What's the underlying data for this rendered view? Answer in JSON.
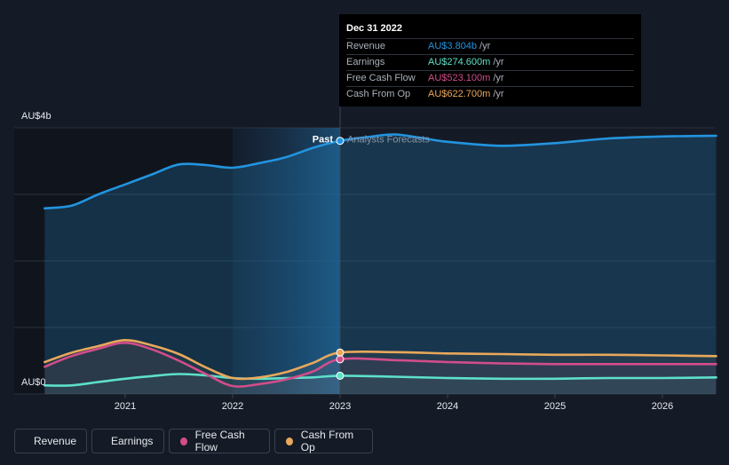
{
  "chart_data": {
    "type": "line",
    "title": "",
    "xlabel": "",
    "ylabel": "",
    "xlim": [
      2020.25,
      2026.5
    ],
    "ylim": [
      0,
      4
    ],
    "y_tick_labels": {
      "top": "AU$4b",
      "bottom": "AU$0"
    },
    "x_ticks": [
      {
        "value": 2021,
        "label": "2021"
      },
      {
        "value": 2022,
        "label": "2022"
      },
      {
        "value": 2023,
        "label": "2023"
      },
      {
        "value": 2024,
        "label": "2024"
      },
      {
        "value": 2025,
        "label": "2025"
      },
      {
        "value": 2026,
        "label": "2026"
      }
    ],
    "divider": {
      "x": 2023,
      "past_label": "Past",
      "forecast_label": "Analysts Forecasts"
    },
    "highlight_range": [
      2022,
      2023
    ],
    "series": [
      {
        "name": "Revenue",
        "color": "#2394df",
        "area": true,
        "points": [
          [
            2020.25,
            2.79
          ],
          [
            2020.5,
            2.83
          ],
          [
            2020.75,
            3.0
          ],
          [
            2021.0,
            3.15
          ],
          [
            2021.25,
            3.3
          ],
          [
            2021.5,
            3.45
          ],
          [
            2021.75,
            3.44
          ],
          [
            2022.0,
            3.4
          ],
          [
            2022.25,
            3.47
          ],
          [
            2022.5,
            3.56
          ],
          [
            2022.75,
            3.7
          ],
          [
            2023.0,
            3.804
          ],
          [
            2023.25,
            3.86
          ],
          [
            2023.5,
            3.9
          ],
          [
            2023.75,
            3.85
          ],
          [
            2024.0,
            3.79
          ],
          [
            2024.5,
            3.73
          ],
          [
            2025.0,
            3.77
          ],
          [
            2025.5,
            3.84
          ],
          [
            2026.0,
            3.87
          ],
          [
            2026.5,
            3.88
          ]
        ]
      },
      {
        "name": "Earnings",
        "color": "#5ee0c9",
        "area": false,
        "points": [
          [
            2020.25,
            0.13
          ],
          [
            2020.5,
            0.13
          ],
          [
            2020.75,
            0.18
          ],
          [
            2021.0,
            0.23
          ],
          [
            2021.25,
            0.27
          ],
          [
            2021.5,
            0.3
          ],
          [
            2021.75,
            0.28
          ],
          [
            2022.0,
            0.24
          ],
          [
            2022.25,
            0.23
          ],
          [
            2022.5,
            0.24
          ],
          [
            2022.75,
            0.25
          ],
          [
            2023.0,
            0.2746
          ],
          [
            2023.5,
            0.26
          ],
          [
            2024.0,
            0.24
          ],
          [
            2024.5,
            0.23
          ],
          [
            2025.0,
            0.23
          ],
          [
            2025.5,
            0.24
          ],
          [
            2026.0,
            0.24
          ],
          [
            2026.5,
            0.25
          ]
        ]
      },
      {
        "name": "Free Cash Flow",
        "color": "#d24d8b",
        "area": false,
        "points": [
          [
            2020.25,
            0.41
          ],
          [
            2020.5,
            0.57
          ],
          [
            2020.75,
            0.68
          ],
          [
            2021.0,
            0.77
          ],
          [
            2021.25,
            0.67
          ],
          [
            2021.5,
            0.5
          ],
          [
            2021.75,
            0.3
          ],
          [
            2022.0,
            0.12
          ],
          [
            2022.25,
            0.15
          ],
          [
            2022.5,
            0.22
          ],
          [
            2022.75,
            0.34
          ],
          [
            2023.0,
            0.5231
          ],
          [
            2023.5,
            0.51
          ],
          [
            2024.0,
            0.48
          ],
          [
            2024.5,
            0.46
          ],
          [
            2025.0,
            0.45
          ],
          [
            2025.5,
            0.45
          ],
          [
            2026.0,
            0.45
          ],
          [
            2026.5,
            0.45
          ]
        ]
      },
      {
        "name": "Cash From Op",
        "color": "#e9a85b",
        "area": false,
        "points": [
          [
            2020.25,
            0.48
          ],
          [
            2020.5,
            0.62
          ],
          [
            2020.75,
            0.72
          ],
          [
            2021.0,
            0.81
          ],
          [
            2021.25,
            0.73
          ],
          [
            2021.5,
            0.6
          ],
          [
            2021.75,
            0.4
          ],
          [
            2022.0,
            0.24
          ],
          [
            2022.25,
            0.25
          ],
          [
            2022.5,
            0.33
          ],
          [
            2022.75,
            0.47
          ],
          [
            2023.0,
            0.6227
          ],
          [
            2023.5,
            0.63
          ],
          [
            2024.0,
            0.61
          ],
          [
            2024.5,
            0.6
          ],
          [
            2025.0,
            0.59
          ],
          [
            2025.5,
            0.59
          ],
          [
            2026.0,
            0.58
          ],
          [
            2026.5,
            0.57
          ]
        ]
      }
    ],
    "highlight_point_x": 2023
  },
  "tooltip": {
    "date": "Dec 31 2022",
    "rows": [
      {
        "name": "Revenue",
        "value": "AU$3.804b",
        "unit": "/yr",
        "color": "#2394df"
      },
      {
        "name": "Earnings",
        "value": "AU$274.600m",
        "unit": "/yr",
        "color": "#5ee0c9"
      },
      {
        "name": "Free Cash Flow",
        "value": "AU$523.100m",
        "unit": "/yr",
        "color": "#d24d8b"
      },
      {
        "name": "Cash From Op",
        "value": "AU$622.700m",
        "unit": "/yr",
        "color": "#e9a85b"
      }
    ]
  },
  "legend": [
    {
      "label": "Revenue",
      "color": "#2394df"
    },
    {
      "label": "Earnings",
      "color": "#5ee0c9"
    },
    {
      "label": "Free Cash Flow",
      "color": "#d24d8b"
    },
    {
      "label": "Cash From Op",
      "color": "#e9a85b"
    }
  ]
}
